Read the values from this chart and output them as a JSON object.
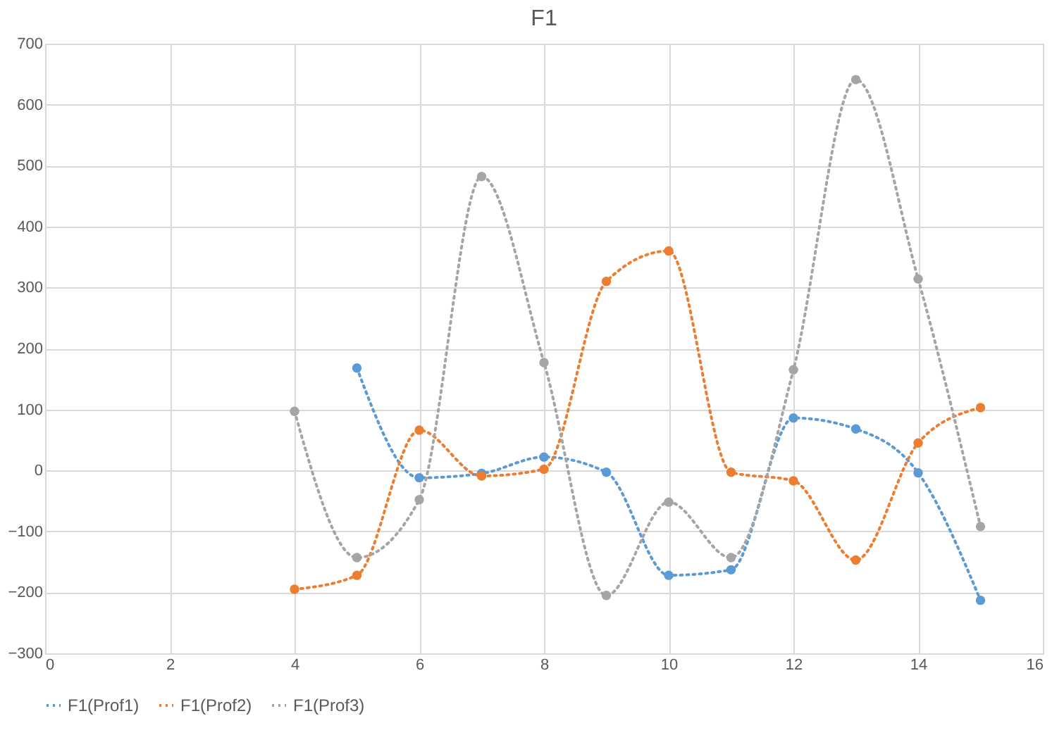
{
  "chart_data": {
    "type": "line",
    "title": "F1",
    "series": [
      {
        "name": "F1(Prof1)",
        "color": "#5b9bd5",
        "x": [
          5,
          6,
          7,
          8,
          9,
          10,
          11,
          12,
          13,
          14,
          15
        ],
        "values": [
          168,
          -12,
          -5,
          22,
          -3,
          -172,
          -163,
          86,
          68,
          -4,
          -213
        ]
      },
      {
        "name": "F1(Prof2)",
        "color": "#ed7d31",
        "x": [
          4,
          5,
          6,
          7,
          8,
          9,
          10,
          11,
          12,
          13,
          14,
          15
        ],
        "values": [
          -195,
          -172,
          66,
          -9,
          2,
          310,
          360,
          -3,
          -17,
          -147,
          45,
          103
        ]
      },
      {
        "name": "F1(Prof3)",
        "color": "#a5a5a5",
        "x": [
          4,
          5,
          6,
          7,
          8,
          9,
          10,
          11,
          12,
          13,
          14,
          15
        ],
        "values": [
          97,
          -143,
          -48,
          482,
          177,
          -205,
          -52,
          -143,
          165,
          641,
          314,
          -92
        ]
      }
    ],
    "xlim": [
      0,
      16
    ],
    "xticks": [
      0,
      2,
      4,
      6,
      8,
      10,
      12,
      14,
      16
    ],
    "ylim": [
      -300,
      700
    ],
    "yticks": [
      -300,
      -200,
      -100,
      0,
      100,
      200,
      300,
      400,
      500,
      600,
      700
    ],
    "grid": true,
    "legend": "bottom",
    "marker": "circle",
    "line_style": "dotted"
  }
}
